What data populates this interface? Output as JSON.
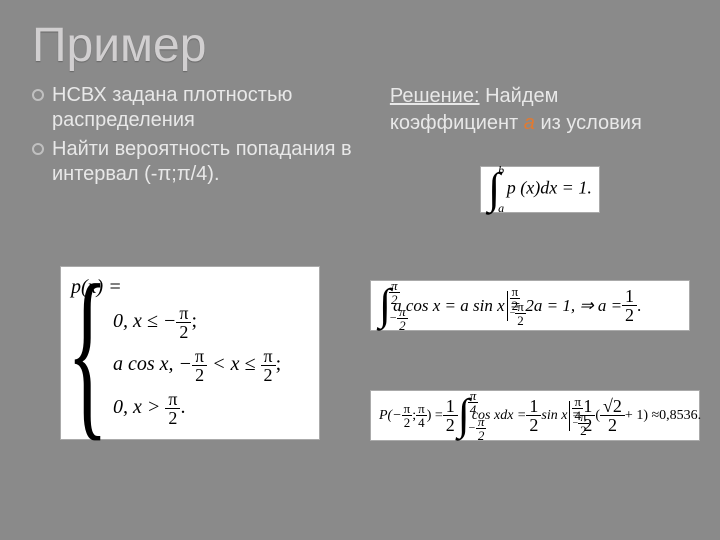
{
  "title": "Пример",
  "bullets": [
    "НСВХ задана плотностью распределения",
    "Найти вероятность попадания в интервал (-π;π/4)."
  ],
  "solution": {
    "label": "Решение:",
    "rest": " Найдем коэффициент ",
    "a": "a",
    "tail": " из условия"
  },
  "fig1": {
    "lhs": "p(x) =",
    "r1a": "0, x ≤ −",
    "r1f_n": "π",
    "r1f_d": "2",
    "r1b": ";",
    "r2a": "a cos x, −",
    "r2f_n": "π",
    "r2f_d": "2",
    "r2b": " < x ≤ ",
    "r2g_n": "π",
    "r2g_d": "2",
    "r2c": ";",
    "r3a": "0, x > ",
    "r3f_n": "π",
    "r3f_d": "2",
    "r3b": "."
  },
  "fig2": {
    "up": "b",
    "lo": "a",
    "body": "p (x)dx = 1."
  },
  "fig3": {
    "int_up_n": "π",
    "int_up_d": "2",
    "int_lo_n": "π",
    "int_lo_d": "2",
    "neg": "−",
    "seg1": "a cos x = a sin x",
    "bar_up_n": "π",
    "bar_up_d": "2",
    "bar_lo_n": "π",
    "bar_lo_d": "2",
    "seg2": "= 2a = 1, ⇒ a = ",
    "res_n": "1",
    "res_d": "2",
    "tail": "."
  },
  "fig4": {
    "Pa": "P(−",
    "f1_n": "π",
    "f1_d": "2",
    "sep": " ; ",
    "f2_n": "π",
    "f2_d": "4",
    "Pb": " ) = ",
    "half_n": "1",
    "half_d": "2",
    "int_up_n": "π",
    "int_up_d": "4",
    "int_lo_n": "π",
    "int_lo_d": "2",
    "neg": "−",
    "mid": " cos xdx = ",
    "mid2": " sin x",
    "bar_up_n": "π",
    "bar_up_d": "4",
    "bar_lo_n": "π",
    "bar_lo_d": "2",
    "eq": " = ",
    "open": " ( ",
    "sqrt_n": "√2",
    "sqrt_d": "2",
    "plus": " + 1) ≈ ",
    "val": "0,8536.",
    "half2_n": "1",
    "half2_d": "2"
  },
  "colors": {
    "bg": "#8a8a8a",
    "title": "#d1cfd0",
    "text": "#e8e8e8",
    "accent": "#e07a32",
    "panel": "#ffffff"
  }
}
